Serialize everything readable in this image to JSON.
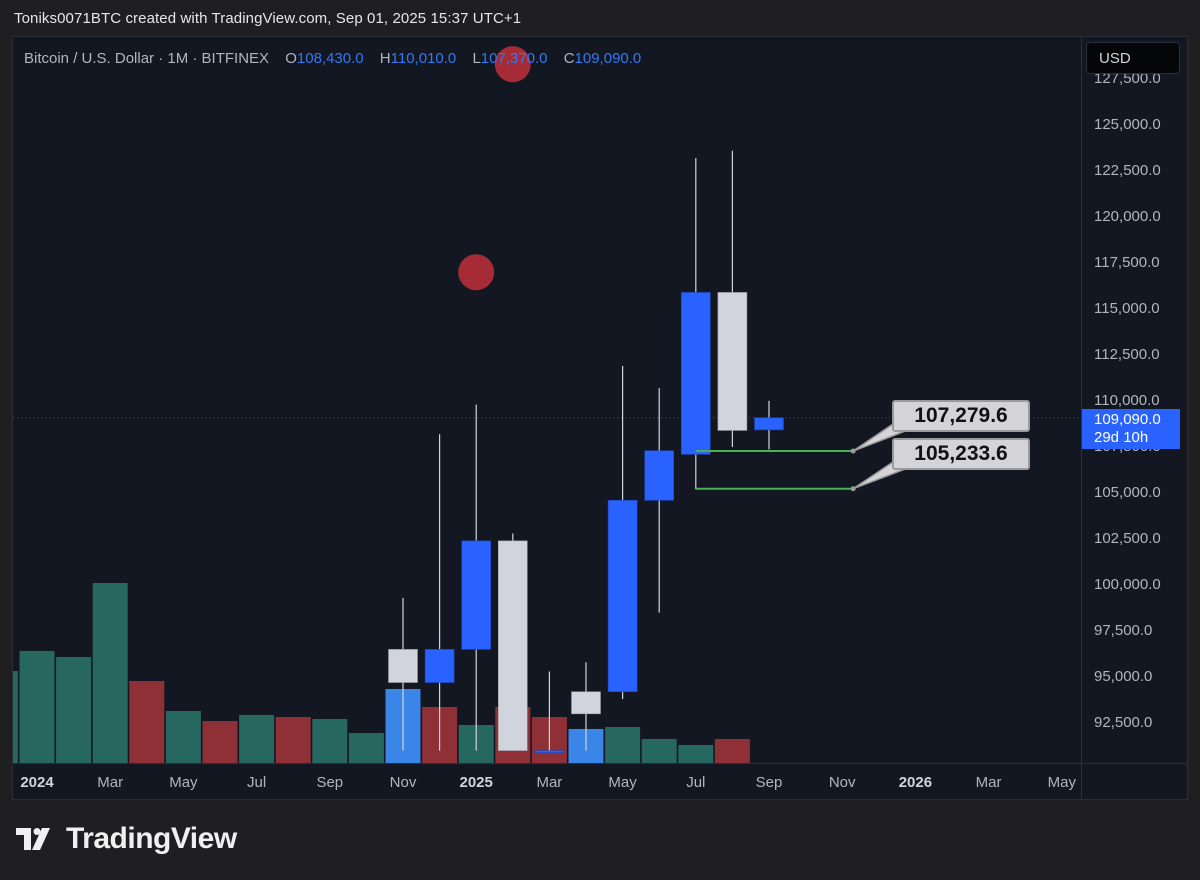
{
  "header": {
    "attribution": "Toniks0071BTC created with TradingView.com, Sep 01, 2025 15:37 UTC+1"
  },
  "legend": {
    "symbol": "Bitcoin / U.S. Dollar · 1M · BITFINEX",
    "o_label": "O",
    "o_value": "108,430.0",
    "h_label": "H",
    "h_value": "110,010.0",
    "l_label": "L",
    "l_value": "107,370.0",
    "c_label": "C",
    "c_value": "109,090.0"
  },
  "currency_button": "USD",
  "last_price": {
    "price": "109,090.0",
    "countdown": "29d 10h"
  },
  "annotations": [
    {
      "label": "107,279.6",
      "value": 107279.6
    },
    {
      "label": "105,233.6",
      "value": 105233.6
    }
  ],
  "branding": {
    "name": "TradingView",
    "logo_icon": "tradingview-logo-icon"
  },
  "colors": {
    "background": "#131722",
    "bullish": "#2962ff",
    "bearish": "#d1d4dc",
    "vol_up": "#26675f",
    "vol_down": "#8e3036",
    "vol_highlight": "#3a86e8",
    "marker": "#c0303a",
    "annotation_line": "#4caf50"
  },
  "chart_data": {
    "type": "candlestick",
    "title": "Bitcoin / U.S. Dollar · 1M · BITFINEX",
    "y_ticks": [
      92500,
      95000,
      97500,
      100000,
      102500,
      105000,
      107500,
      110000,
      112500,
      115000,
      117500,
      120000,
      122500,
      125000,
      127500
    ],
    "y_tick_labels": [
      "92,500.0",
      "95,000.0",
      "97,500.0",
      "100,000.0",
      "102,500.0",
      "105,000.0",
      "107,500.0",
      "110,000.0",
      "112,500.0",
      "115,000.0",
      "117,500.0",
      "120,000.0",
      "122,500.0",
      "125,000.0",
      "127,500.0"
    ],
    "x_tick_labels": [
      "2024",
      "Mar",
      "May",
      "Jul",
      "Sep",
      "Nov",
      "2025",
      "Mar",
      "May",
      "Jul",
      "Sep",
      "Nov",
      "2026",
      "Mar",
      "May"
    ],
    "x_tick_months": [
      0,
      2,
      4,
      6,
      8,
      10,
      12,
      14,
      16,
      18,
      20,
      22,
      24,
      26,
      28
    ],
    "x_major_ticks": [
      "2024",
      "2025",
      "2026"
    ],
    "candles": [
      {
        "month": 10,
        "label": "Nov 2024",
        "open": 96500,
        "high": 99300,
        "low": 91000,
        "close": 94700
      },
      {
        "month": 11,
        "label": "Dec 2024",
        "open": 94700,
        "high": 108200,
        "low": 91000,
        "close": 96500
      },
      {
        "month": 12,
        "label": "Jan 2025",
        "open": 96500,
        "high": 109800,
        "low": 91000,
        "close": 102400
      },
      {
        "month": 13,
        "label": "Feb 2025",
        "open": 102400,
        "high": 102800,
        "low": 91000,
        "close": 91000
      },
      {
        "month": 14,
        "label": "Mar 2025",
        "open": 91000,
        "high": 95300,
        "low": 91000,
        "close": 91000
      },
      {
        "month": 15,
        "label": "Apr 2025",
        "open": 94200,
        "high": 95800,
        "low": 91000,
        "close": 93000
      },
      {
        "month": 16,
        "label": "May 2025",
        "open": 94200,
        "high": 111900,
        "low": 93800,
        "close": 104600
      },
      {
        "month": 17,
        "label": "Jun 2025",
        "open": 104600,
        "high": 110700,
        "low": 98500,
        "close": 107300
      },
      {
        "month": 18,
        "label": "Jul 2025",
        "open": 107100,
        "high": 123200,
        "low": 105200,
        "close": 115900
      },
      {
        "month": 19,
        "label": "Aug 2025",
        "open": 115900,
        "high": 123600,
        "low": 107500,
        "close": 108400
      },
      {
        "month": 20,
        "label": "Sep 2025",
        "open": 108430,
        "high": 110010,
        "low": 107370,
        "close": 109090
      }
    ],
    "volume": [
      {
        "month": -1,
        "value": 46,
        "dir": "up"
      },
      {
        "month": 0,
        "value": 56,
        "dir": "up"
      },
      {
        "month": 1,
        "value": 53,
        "dir": "up"
      },
      {
        "month": 2,
        "value": 90,
        "dir": "up"
      },
      {
        "month": 3,
        "value": 41,
        "dir": "down"
      },
      {
        "month": 4,
        "value": 26,
        "dir": "up"
      },
      {
        "month": 5,
        "value": 21,
        "dir": "down"
      },
      {
        "month": 6,
        "value": 24,
        "dir": "up"
      },
      {
        "month": 7,
        "value": 23,
        "dir": "down"
      },
      {
        "month": 8,
        "value": 22,
        "dir": "up"
      },
      {
        "month": 9,
        "value": 15,
        "dir": "up"
      },
      {
        "month": 10,
        "value": 37,
        "dir": "highlight"
      },
      {
        "month": 11,
        "value": 28,
        "dir": "down"
      },
      {
        "month": 12,
        "value": 19,
        "dir": "up"
      },
      {
        "month": 13,
        "value": 28,
        "dir": "down"
      },
      {
        "month": 14,
        "value": 23,
        "dir": "down"
      },
      {
        "month": 15,
        "value": 17,
        "dir": "highlight"
      },
      {
        "month": 16,
        "value": 18,
        "dir": "up"
      },
      {
        "month": 17,
        "value": 12,
        "dir": "up"
      },
      {
        "month": 18,
        "value": 9,
        "dir": "up"
      },
      {
        "month": 19,
        "value": 12,
        "dir": "down"
      }
    ],
    "volume_max": 100,
    "markers": [
      {
        "month": 13,
        "price": 128300
      },
      {
        "month": 12,
        "price": 117000
      }
    ],
    "last_price_value": 109090,
    "horizontal_segments": [
      {
        "from_month": 18,
        "to_month": 22.3,
        "price": 107279.6
      },
      {
        "from_month": 18,
        "to_month": 22.3,
        "price": 105233.6
      }
    ]
  }
}
